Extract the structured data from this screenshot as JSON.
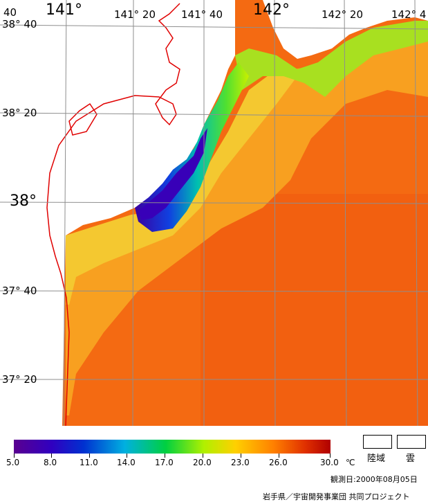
{
  "map": {
    "lat_labels": [
      "38° 40",
      "38° 20",
      "38°",
      "37° 40",
      "37° 20"
    ],
    "lon_labels": [
      "40",
      "141°",
      "141° 20",
      "141° 40",
      "142°",
      "142° 20",
      "142° 4"
    ],
    "colors": {
      "sea_warm": "#ff7a10",
      "coast": "#e00000",
      "grid": "#9a9a9a",
      "land": "#ffffff"
    }
  },
  "legend": {
    "ticks": [
      "5.0",
      "8.0",
      "11.0",
      "14.0",
      "17.0",
      "20.0",
      "23.0",
      "26.0",
      "30.0"
    ],
    "unit": "℃",
    "land_label": "陸域",
    "cloud_label": "雲"
  },
  "footer": {
    "date": "観測日:2000年08月05日",
    "credit": "岩手県／宇宙開発事業団  共同プロジェクト"
  }
}
